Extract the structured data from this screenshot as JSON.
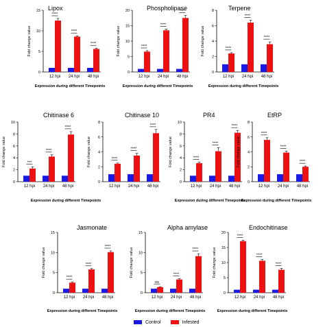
{
  "legend": {
    "control_label": "Control",
    "infested_label": "Infested"
  },
  "colors": {
    "control": "#1a1ae6",
    "infested": "#ee1111"
  },
  "chart_data": [
    {
      "type": "bar",
      "title": "Lipox",
      "xlabel": "Expression during different Timepoints",
      "ylabel": "Fold change value",
      "categories": [
        "12 hpi",
        "24 hpi",
        "48 hpi"
      ],
      "ylim": [
        0,
        15
      ],
      "yticks": [
        0,
        5,
        10,
        15
      ],
      "series": [
        {
          "name": "Control",
          "values": [
            1,
            1,
            1
          ]
        },
        {
          "name": "Infested",
          "values": [
            12.5,
            8.6,
            5.6
          ]
        }
      ],
      "errors": [
        0.5,
        0.2,
        0.2
      ],
      "significance": [
        "****",
        "****",
        "****"
      ]
    },
    {
      "type": "bar",
      "title": "Phospholipase",
      "xlabel": "Expression during different Timepoints",
      "ylabel": "Fold change value",
      "categories": [
        "12 hpi",
        "24 hpi",
        "48 hpi"
      ],
      "ylim": [
        0,
        20
      ],
      "yticks": [
        0,
        5,
        10,
        15,
        20
      ],
      "series": [
        {
          "name": "Control",
          "values": [
            1,
            1,
            1
          ]
        },
        {
          "name": "Infested",
          "values": [
            6.6,
            13.5,
            17.5
          ]
        }
      ],
      "errors": [
        0.3,
        0.4,
        0.8
      ],
      "significance": [
        "****",
        "****",
        "****"
      ]
    },
    {
      "type": "bar",
      "title": "Terpene",
      "xlabel": "Expression during different Timepoints",
      "ylabel": "Fold change value",
      "categories": [
        "12 hpi",
        "24 hpi",
        "48 hpi"
      ],
      "ylim": [
        0,
        8
      ],
      "yticks": [
        0,
        2,
        4,
        6,
        8
      ],
      "series": [
        {
          "name": "Control",
          "values": [
            1,
            1,
            1
          ]
        },
        {
          "name": "Infested",
          "values": [
            2.4,
            6.4,
            3.6
          ]
        }
      ],
      "errors": [
        0.1,
        0.3,
        0.3
      ],
      "significance": [
        "****",
        "****",
        "****"
      ]
    },
    {
      "type": "bar",
      "title": "Chitinase 6",
      "xlabel": "Expression during different Timepoints",
      "ylabel": "Fold change value",
      "categories": [
        "12 hpi",
        "24 hpi",
        "48 hpi"
      ],
      "ylim": [
        0,
        10
      ],
      "yticks": [
        0,
        2,
        4,
        6,
        8,
        10
      ],
      "series": [
        {
          "name": "Control",
          "values": [
            1,
            1,
            1
          ]
        },
        {
          "name": "Infested",
          "values": [
            2.2,
            4.2,
            7.9
          ]
        }
      ],
      "errors": [
        0.3,
        0.3,
        0.5
      ],
      "significance": [
        "***",
        "****",
        "****"
      ]
    },
    {
      "type": "bar",
      "title": "Chitinase 10",
      "xlabel": "",
      "ylabel": "Fold change value",
      "categories": [
        "12 hpi",
        "24 hpi",
        "48 hpi"
      ],
      "ylim": [
        0,
        8
      ],
      "yticks": [
        0,
        2,
        4,
        6,
        8
      ],
      "series": [
        {
          "name": "Control",
          "values": [
            1,
            1,
            1
          ]
        },
        {
          "name": "Infested",
          "values": [
            2.4,
            3.5,
            6.5
          ]
        }
      ],
      "errors": [
        0.1,
        0.3,
        0.5
      ],
      "significance": [
        "****",
        "****",
        "****"
      ]
    },
    {
      "type": "bar",
      "title": "PR4",
      "xlabel": "Expression during different Timepoints",
      "ylabel": "Fold change value",
      "categories": [
        "12 hpi",
        "24 hpi",
        "48 hpi"
      ],
      "ylim": [
        0,
        10
      ],
      "yticks": [
        0,
        2,
        4,
        6,
        8,
        10
      ],
      "series": [
        {
          "name": "Control",
          "values": [
            1,
            1,
            1
          ]
        },
        {
          "name": "Infested",
          "values": [
            3.1,
            5.1,
            8.2
          ]
        }
      ],
      "errors": [
        0.2,
        0.6,
        0.4
      ],
      "significance": [
        "****",
        "****",
        "****"
      ]
    },
    {
      "type": "bar",
      "title": "EtRP",
      "xlabel": "Expression during different Timepoints",
      "ylabel": "Fold change value",
      "categories": [
        "12 hpi",
        "24 hpi",
        "48 hpi"
      ],
      "ylim": [
        0,
        8
      ],
      "yticks": [
        0,
        2,
        4,
        6,
        8
      ],
      "series": [
        {
          "name": "Control",
          "values": [
            1,
            1,
            1
          ]
        },
        {
          "name": "Infested",
          "values": [
            5.6,
            3.9,
            2.0
          ]
        }
      ],
      "errors": [
        0.3,
        0.2,
        0.1
      ],
      "significance": [
        "****",
        "****",
        "****"
      ]
    },
    {
      "type": "bar",
      "title": "Jasmonate",
      "xlabel": "Expression during different Timepoints",
      "ylabel": "Fold change value",
      "categories": [
        "12 hpi",
        "24 hpi",
        "48 hpi"
      ],
      "ylim": [
        0,
        15
      ],
      "yticks": [
        0,
        5,
        10,
        15
      ],
      "series": [
        {
          "name": "Control",
          "values": [
            1,
            1,
            1
          ]
        },
        {
          "name": "Infested",
          "values": [
            2.5,
            5.8,
            10.1
          ]
        }
      ],
      "errors": [
        0.2,
        0.2,
        0.3
      ],
      "significance": [
        "****",
        "****",
        "****"
      ]
    },
    {
      "type": "bar",
      "title": "Alpha amylase",
      "xlabel": "Expression during different Timepoints",
      "ylabel": "Fold change value",
      "categories": [
        "12 hpi",
        "24 hpi",
        "48 hpi"
      ],
      "ylim": [
        0,
        15
      ],
      "yticks": [
        0,
        5,
        10,
        15
      ],
      "series": [
        {
          "name": "Control",
          "values": [
            1,
            1,
            1
          ]
        },
        {
          "name": "Infested",
          "values": [
            1.4,
            3.3,
            9.1
          ]
        }
      ],
      "errors": [
        0.1,
        0.2,
        0.6
      ],
      "significance": [
        "ns",
        "****",
        "****"
      ]
    },
    {
      "type": "bar",
      "title": "Endochitinase",
      "xlabel": "Expression during different Timepoints",
      "ylabel": "Fold change value",
      "categories": [
        "12 hpi",
        "24 hpi",
        "48 hpi"
      ],
      "ylim": [
        0,
        20
      ],
      "yticks": [
        0,
        5,
        10,
        15,
        20
      ],
      "series": [
        {
          "name": "Control",
          "values": [
            1,
            1,
            1
          ]
        },
        {
          "name": "Infested",
          "values": [
            17.1,
            10.6,
            7.6
          ]
        }
      ],
      "errors": [
        0.3,
        0.4,
        0.5
      ],
      "significance": [
        "****",
        "****",
        "****"
      ]
    }
  ]
}
